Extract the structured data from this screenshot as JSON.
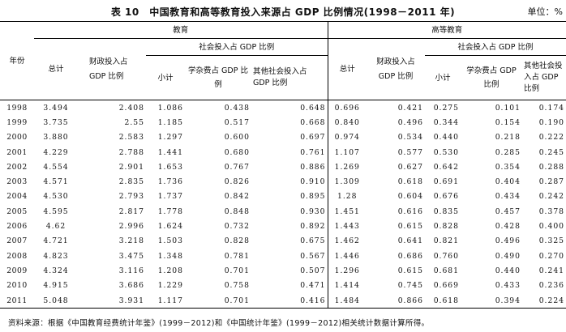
{
  "title": "表 10　中国教育和高等教育投入来源占 GDP 比例情况(1998－2011 年)",
  "unit": "单位：%",
  "headers": {
    "year": "年份",
    "education": "教育",
    "higher_education": "高等教育",
    "total": "总计",
    "fiscal": "财政投入占 GDP 比例",
    "social_group": "社会投入占 GDP 比例",
    "subtotal": "小计",
    "tuition": "学杂费占 GDP 比例",
    "other_social": "其他社会投入占 GDP 比例"
  },
  "rows": [
    {
      "year": "1998",
      "e_total": "3.494",
      "e_fiscal": "2.408",
      "e_sub": "1.086",
      "e_tuition": "0.438",
      "e_other": "0.648",
      "h_total": "0.696",
      "h_fiscal": "0.421",
      "h_sub": "0.275",
      "h_tuition": "0.101",
      "h_other": "0.174"
    },
    {
      "year": "1999",
      "e_total": "3.735",
      "e_fiscal": "2.55",
      "e_sub": "1.185",
      "e_tuition": "0.517",
      "e_other": "0.668",
      "h_total": "0.840",
      "h_fiscal": "0.496",
      "h_sub": "0.344",
      "h_tuition": "0.154",
      "h_other": "0.190"
    },
    {
      "year": "2000",
      "e_total": "3.880",
      "e_fiscal": "2.583",
      "e_sub": "1.297",
      "e_tuition": "0.600",
      "e_other": "0.697",
      "h_total": "0.974",
      "h_fiscal": "0.534",
      "h_sub": "0.440",
      "h_tuition": "0.218",
      "h_other": "0.222"
    },
    {
      "year": "2001",
      "e_total": "4.229",
      "e_fiscal": "2.788",
      "e_sub": "1.441",
      "e_tuition": "0.680",
      "e_other": "0.761",
      "h_total": "1.107",
      "h_fiscal": "0.577",
      "h_sub": "0.530",
      "h_tuition": "0.285",
      "h_other": "0.245"
    },
    {
      "year": "2002",
      "e_total": "4.554",
      "e_fiscal": "2.901",
      "e_sub": "1.653",
      "e_tuition": "0.767",
      "e_other": "0.886",
      "h_total": "1.269",
      "h_fiscal": "0.627",
      "h_sub": "0.642",
      "h_tuition": "0.354",
      "h_other": "0.288"
    },
    {
      "year": "2003",
      "e_total": "4.571",
      "e_fiscal": "2.835",
      "e_sub": "1.736",
      "e_tuition": "0.826",
      "e_other": "0.910",
      "h_total": "1.309",
      "h_fiscal": "0.618",
      "h_sub": "0.691",
      "h_tuition": "0.404",
      "h_other": "0.287"
    },
    {
      "year": "2004",
      "e_total": "4.530",
      "e_fiscal": "2.793",
      "e_sub": "1.737",
      "e_tuition": "0.842",
      "e_other": "0.895",
      "h_total": "1.28",
      "h_fiscal": "0.604",
      "h_sub": "0.676",
      "h_tuition": "0.434",
      "h_other": "0.242"
    },
    {
      "year": "2005",
      "e_total": "4.595",
      "e_fiscal": "2.817",
      "e_sub": "1.778",
      "e_tuition": "0.848",
      "e_other": "0.930",
      "h_total": "1.451",
      "h_fiscal": "0.616",
      "h_sub": "0.835",
      "h_tuition": "0.457",
      "h_other": "0.378"
    },
    {
      "year": "2006",
      "e_total": "4.62",
      "e_fiscal": "2.996",
      "e_sub": "1.624",
      "e_tuition": "0.732",
      "e_other": "0.892",
      "h_total": "1.443",
      "h_fiscal": "0.615",
      "h_sub": "0.828",
      "h_tuition": "0.428",
      "h_other": "0.400"
    },
    {
      "year": "2007",
      "e_total": "4.721",
      "e_fiscal": "3.218",
      "e_sub": "1.503",
      "e_tuition": "0.828",
      "e_other": "0.675",
      "h_total": "1.462",
      "h_fiscal": "0.641",
      "h_sub": "0.821",
      "h_tuition": "0.496",
      "h_other": "0.325"
    },
    {
      "year": "2008",
      "e_total": "4.823",
      "e_fiscal": "3.475",
      "e_sub": "1.348",
      "e_tuition": "0.781",
      "e_other": "0.567",
      "h_total": "1.446",
      "h_fiscal": "0.686",
      "h_sub": "0.760",
      "h_tuition": "0.490",
      "h_other": "0.270"
    },
    {
      "year": "2009",
      "e_total": "4.324",
      "e_fiscal": "3.116",
      "e_sub": "1.208",
      "e_tuition": "0.701",
      "e_other": "0.507",
      "h_total": "1.296",
      "h_fiscal": "0.615",
      "h_sub": "0.681",
      "h_tuition": "0.440",
      "h_other": "0.241"
    },
    {
      "year": "2010",
      "e_total": "4.915",
      "e_fiscal": "3.686",
      "e_sub": "1.229",
      "e_tuition": "0.758",
      "e_other": "0.471",
      "h_total": "1.414",
      "h_fiscal": "0.745",
      "h_sub": "0.669",
      "h_tuition": "0.433",
      "h_other": "0.236"
    },
    {
      "year": "2011",
      "e_total": "5.048",
      "e_fiscal": "3.931",
      "e_sub": "1.117",
      "e_tuition": "0.701",
      "e_other": "0.416",
      "h_total": "1.484",
      "h_fiscal": "0.866",
      "h_sub": "0.618",
      "h_tuition": "0.394",
      "h_other": "0.224"
    }
  ],
  "source": "资料来源：根据《中国教育经费统计年鉴》(1999－2012)和《中国统计年鉴》(1999－2012)相关统计数据计算所得。"
}
